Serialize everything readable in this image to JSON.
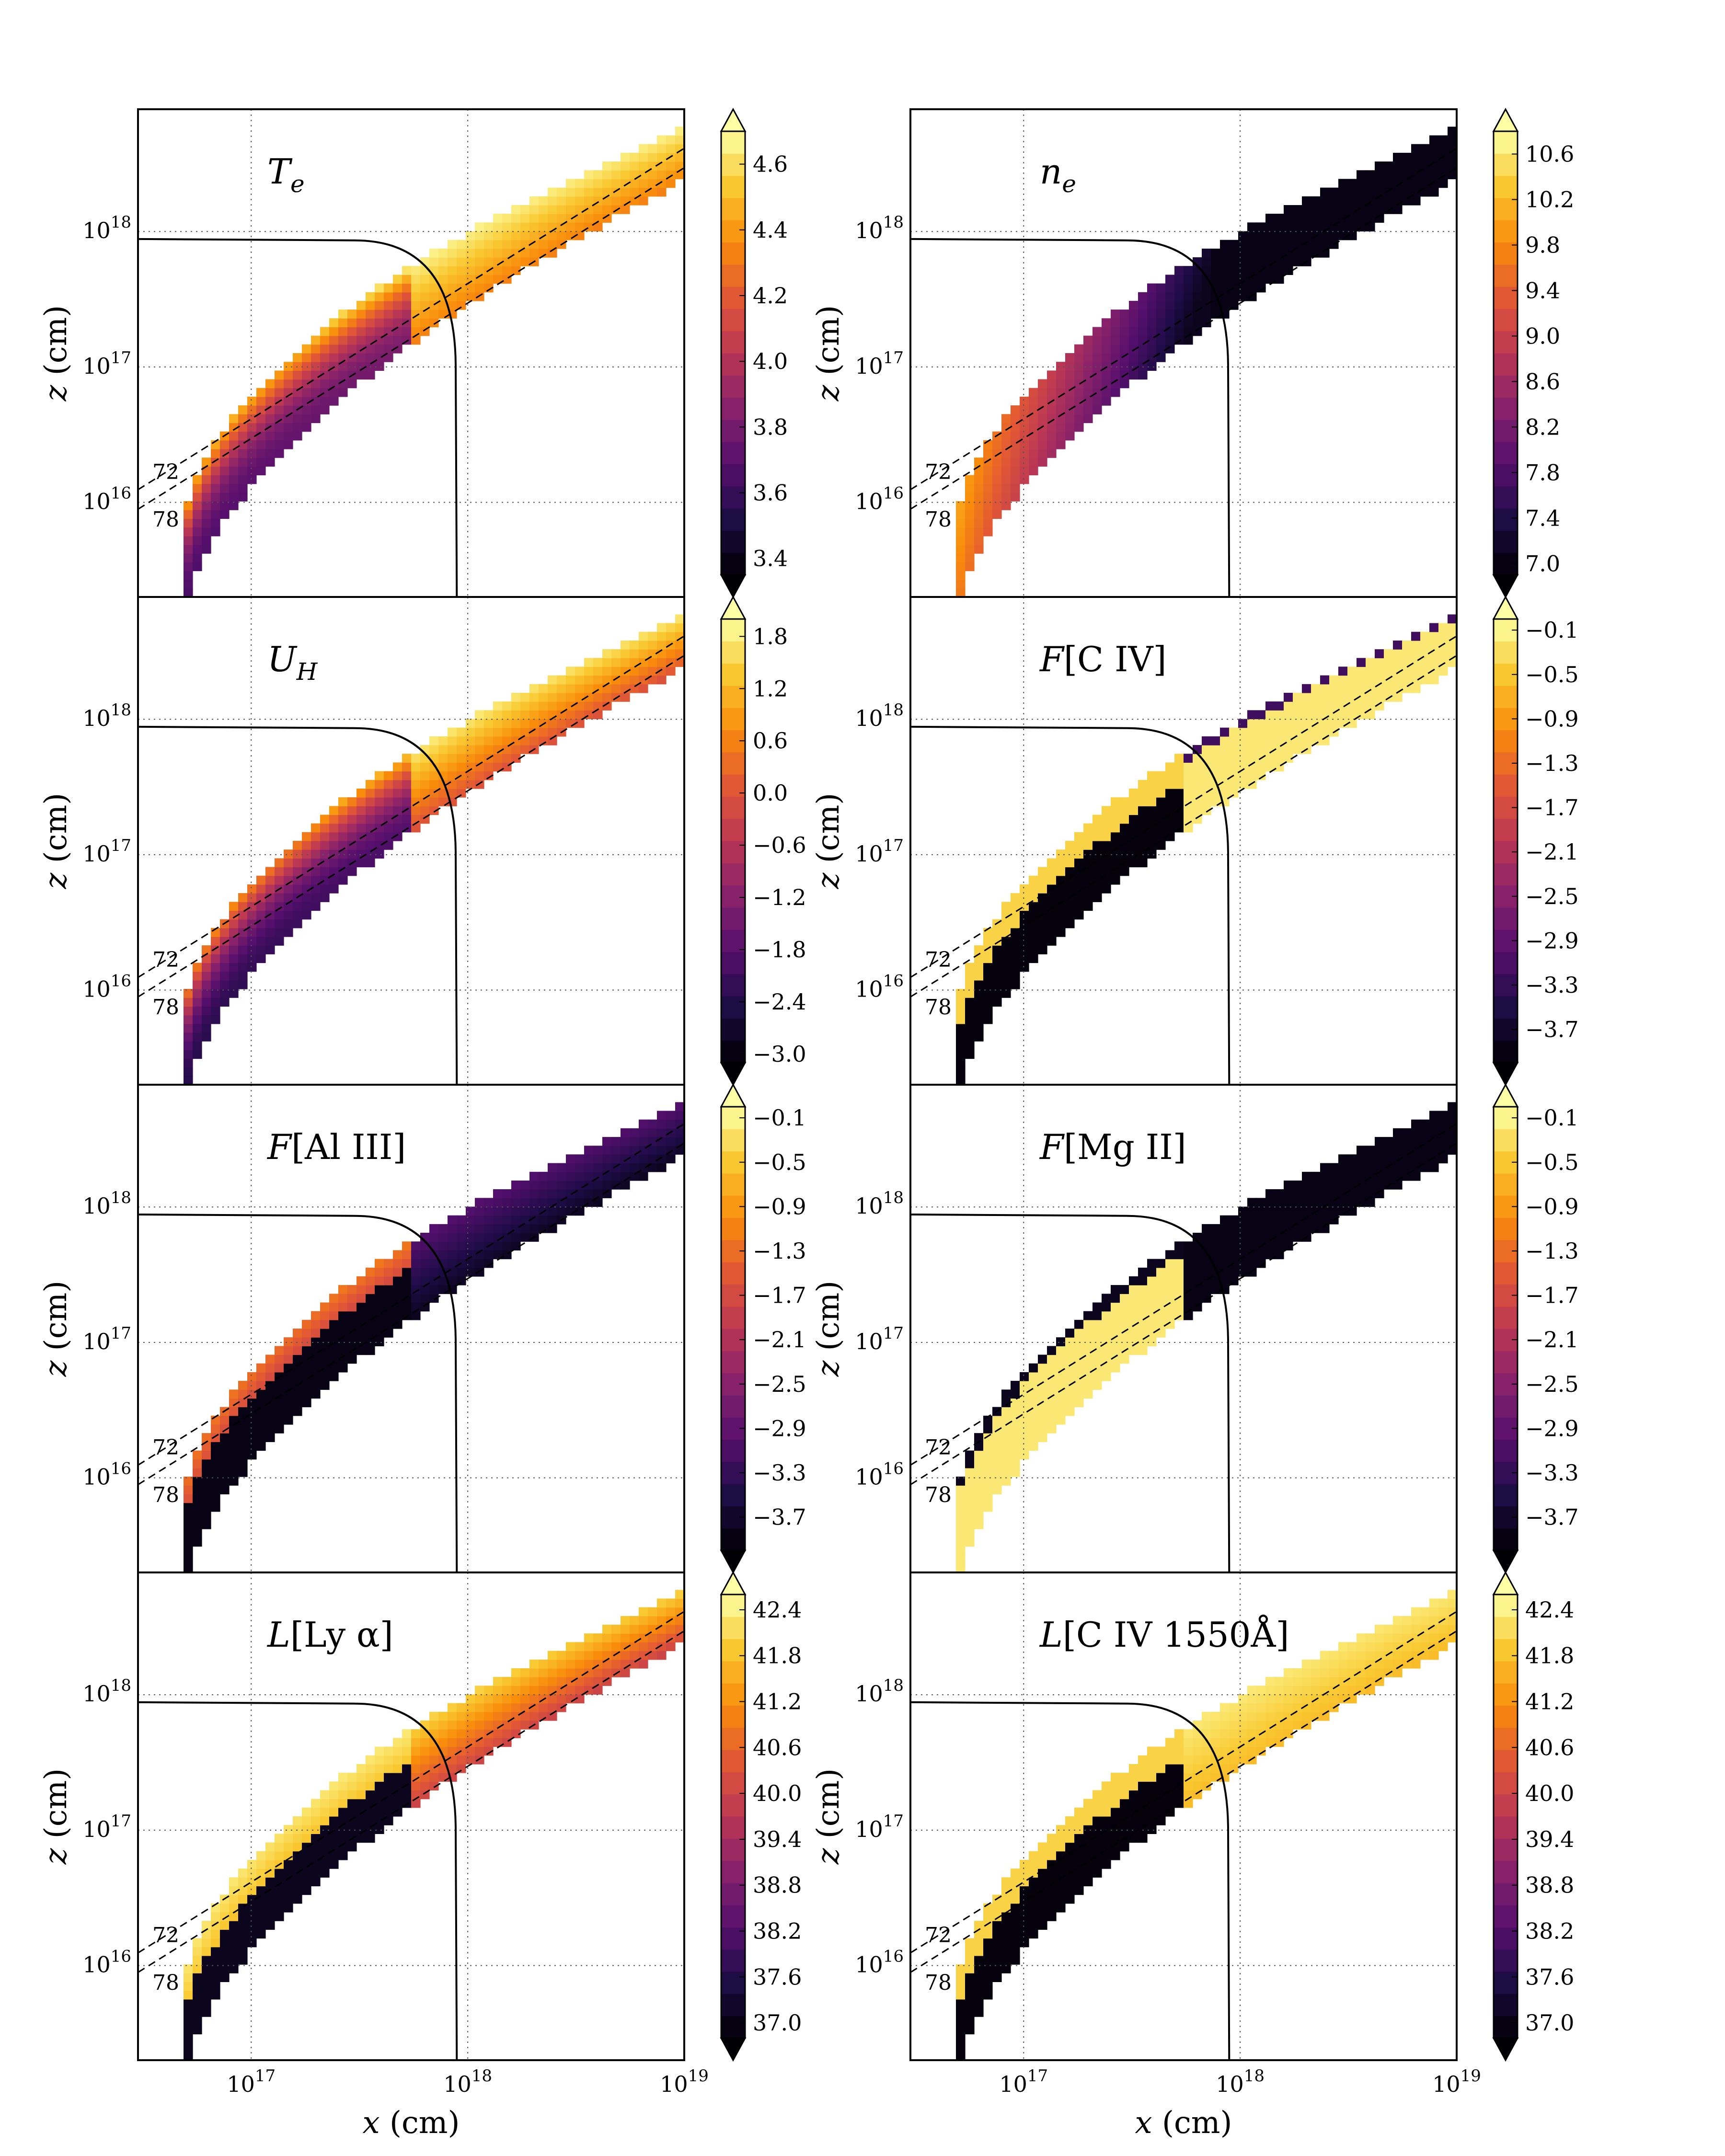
{
  "chart_data": {
    "type": "heatmap",
    "layout": {
      "rows": 4,
      "cols": 2
    },
    "shared_axes": {
      "xlabel": "x (cm)",
      "ylabel": "z (cm)",
      "xscale": "log",
      "yscale": "log",
      "xlim": [
        3e+16,
        1e+19
      ],
      "ylim": [
        2000000000000000.0,
        8e+18
      ],
      "x_ticks": [
        {
          "value": 1e+17,
          "label": "10^17"
        },
        {
          "value": 1e+18,
          "label": "10^18"
        },
        {
          "value": 1e+19,
          "label": "10^19"
        }
      ],
      "y_ticks": [
        {
          "value": 1e+16,
          "label": "10^16"
        },
        {
          "value": 1e+17,
          "label": "10^17"
        },
        {
          "value": 1e+18,
          "label": "10^18"
        }
      ],
      "grid": true,
      "grid_style": "dotted",
      "solid_curve": {
        "type": "boundary",
        "description_points": [
          [
            3e+16,
            8.8e+17
          ],
          [
            3e+17,
            8.6e+17
          ],
          [
            7e+17,
            5e+17
          ],
          [
            8.8e+17,
            1e+17
          ],
          [
            8.9e+17,
            2000000000000000.0
          ]
        ]
      },
      "dashed_lines": [
        {
          "label": "72",
          "angle_deg": 72
        },
        {
          "label": "78",
          "angle_deg": 78
        }
      ]
    },
    "panels": [
      {
        "title_main": "T",
        "title_sub": "e",
        "title_rest": "",
        "colormap": "inferno",
        "colorbar": {
          "ticks": [
            3.4,
            3.6,
            3.8,
            4.0,
            4.2,
            4.4,
            4.6
          ],
          "labels": [
            "3.4",
            "3.6",
            "3.8",
            "4.0",
            "4.2",
            "4.4",
            "4.6"
          ],
          "min": 3.35,
          "max": 4.7
        },
        "pattern": "temp"
      },
      {
        "title_main": "n",
        "title_sub": "e",
        "title_rest": "",
        "colormap": "inferno",
        "colorbar": {
          "ticks": [
            7.0,
            7.4,
            7.8,
            8.2,
            8.6,
            9.0,
            9.4,
            9.8,
            10.2,
            10.6
          ],
          "labels": [
            "7.0",
            "7.4",
            "7.8",
            "8.2",
            "8.6",
            "9.0",
            "9.4",
            "9.8",
            "10.2",
            "10.6"
          ],
          "min": 6.9,
          "max": 10.8
        },
        "pattern": "density"
      },
      {
        "title_main": "U",
        "title_sub": "H",
        "title_rest": "",
        "colormap": "inferno",
        "colorbar": {
          "ticks": [
            -3.0,
            -2.4,
            -1.8,
            -1.2,
            -0.6,
            0.0,
            0.6,
            1.2,
            1.8
          ],
          "labels": [
            "−3.0",
            "−2.4",
            "−1.8",
            "−1.2",
            "−0.6",
            "0.0",
            "0.6",
            "1.2",
            "1.8"
          ],
          "min": -3.1,
          "max": 2.0
        },
        "pattern": "ion"
      },
      {
        "title_main": "F",
        "title_sub": "",
        "title_rest": "[C IV]",
        "colormap": "inferno",
        "colorbar": {
          "ticks": [
            -3.7,
            -3.3,
            -2.9,
            -2.5,
            -2.1,
            -1.7,
            -1.3,
            -0.9,
            -0.5,
            -0.1
          ],
          "labels": [
            "−3.7",
            "−3.3",
            "−2.9",
            "−2.5",
            "−2.1",
            "−1.7",
            "−1.3",
            "−0.9",
            "−0.5",
            "−0.1"
          ],
          "min": -4.0,
          "max": 0.0
        },
        "pattern": "civ"
      },
      {
        "title_main": "F",
        "title_sub": "",
        "title_rest": "[Al III]",
        "colormap": "inferno",
        "colorbar": {
          "ticks": [
            -3.7,
            -3.3,
            -2.9,
            -2.5,
            -2.1,
            -1.7,
            -1.3,
            -0.9,
            -0.5,
            -0.1
          ],
          "labels": [
            "−3.7",
            "−3.3",
            "−2.9",
            "−2.5",
            "−2.1",
            "−1.7",
            "−1.3",
            "−0.9",
            "−0.5",
            "−0.1"
          ],
          "min": -4.0,
          "max": 0.0
        },
        "pattern": "aliii"
      },
      {
        "title_main": "F",
        "title_sub": "",
        "title_rest": "[Mg II]",
        "colormap": "inferno",
        "colorbar": {
          "ticks": [
            -3.7,
            -3.3,
            -2.9,
            -2.5,
            -2.1,
            -1.7,
            -1.3,
            -0.9,
            -0.5,
            -0.1
          ],
          "labels": [
            "−3.7",
            "−3.3",
            "−2.9",
            "−2.5",
            "−2.1",
            "−1.7",
            "−1.3",
            "−0.9",
            "−0.5",
            "−0.1"
          ],
          "min": -4.0,
          "max": 0.0
        },
        "pattern": "mgii"
      },
      {
        "title_main": "L",
        "title_sub": "",
        "title_rest": "[Ly α]",
        "colormap": "inferno",
        "colorbar": {
          "ticks": [
            37.0,
            37.6,
            38.2,
            38.8,
            39.4,
            40.0,
            40.6,
            41.2,
            41.8,
            42.4
          ],
          "labels": [
            "37.0",
            "37.6",
            "38.2",
            "38.8",
            "39.4",
            "40.0",
            "40.6",
            "41.2",
            "41.8",
            "42.4"
          ],
          "min": 36.8,
          "max": 42.6
        },
        "pattern": "lya"
      },
      {
        "title_main": "L",
        "title_sub": "",
        "title_rest": "[C IV 1550Å]",
        "colormap": "inferno",
        "colorbar": {
          "ticks": [
            37.0,
            37.6,
            38.2,
            38.8,
            39.4,
            40.0,
            40.6,
            41.2,
            41.8,
            42.4
          ],
          "labels": [
            "37.0",
            "37.6",
            "38.2",
            "38.8",
            "39.4",
            "40.0",
            "40.6",
            "41.2",
            "41.8",
            "42.4"
          ],
          "min": 36.8,
          "max": 42.6
        },
        "pattern": "civlum"
      }
    ]
  }
}
